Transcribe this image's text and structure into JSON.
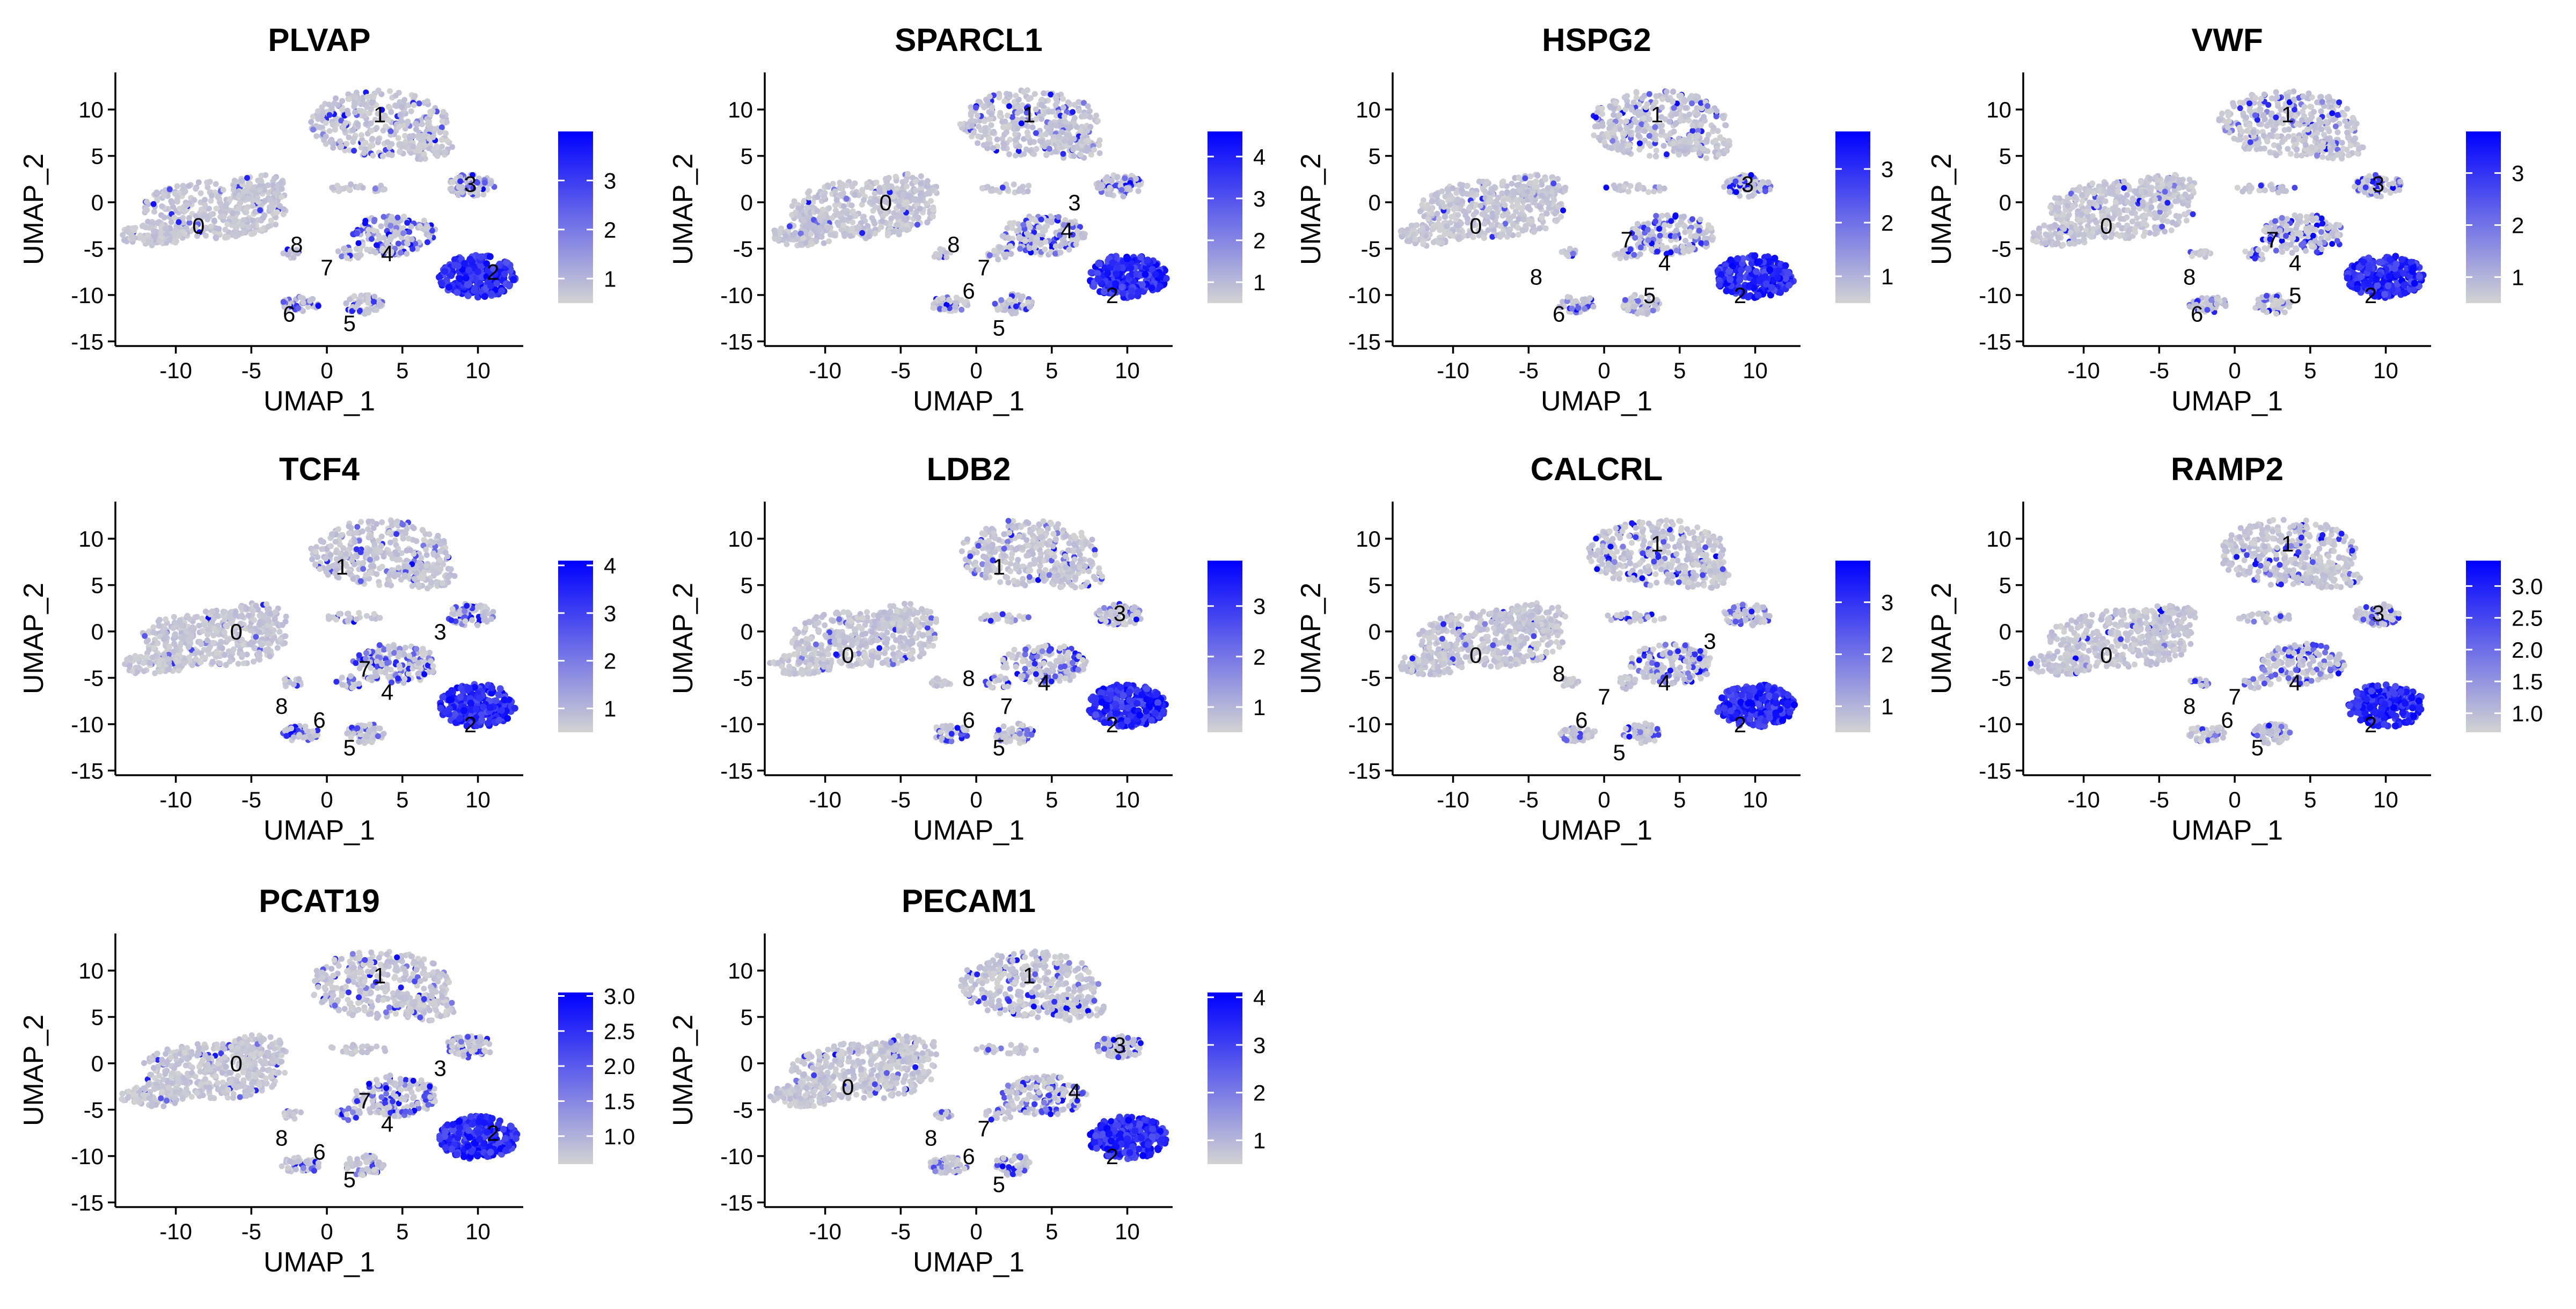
{
  "figure": {
    "layout": "feature-plot-grid",
    "point_color_low": "#d3d3d3",
    "point_color_high": "#0000ff",
    "point_color_mid": "#8e7ee6"
  },
  "chart_data": [
    {
      "type": "scatter",
      "title": "PLVAP",
      "xlabel": "UMAP_1",
      "ylabel": "UMAP_2",
      "xlim": [
        -14,
        13
      ],
      "ylim": [
        -15.5,
        14
      ],
      "x_ticks": [
        -10,
        -5,
        0,
        5,
        10
      ],
      "y_ticks": [
        -15,
        -10,
        -5,
        0,
        5,
        10
      ],
      "x_tick_labels": [
        "-10",
        "-5",
        "0",
        "5",
        "10"
      ],
      "y_tick_labels": [
        "-15",
        "-10",
        "-5",
        "0",
        "5",
        "10"
      ],
      "colorbar": {
        "min": 0.5,
        "max": 4.0,
        "ticks": [
          1,
          2,
          3
        ],
        "tick_labels": [
          "1",
          "2",
          "3"
        ]
      },
      "clusters": [
        {
          "label": "0",
          "x": -8.5,
          "y": -2.5
        },
        {
          "label": "1",
          "x": 3.5,
          "y": 9.5
        },
        {
          "label": "2",
          "x": 11,
          "y": -7.5
        },
        {
          "label": "3",
          "x": 9.5,
          "y": 2
        },
        {
          "label": "4",
          "x": 4,
          "y": -5.5
        },
        {
          "label": "5",
          "x": 1.5,
          "y": -13
        },
        {
          "label": "6",
          "x": -2.5,
          "y": -12
        },
        {
          "label": "7",
          "x": 0,
          "y": -7
        },
        {
          "label": "8",
          "x": -2,
          "y": -4.5
        }
      ]
    },
    {
      "type": "scatter",
      "title": "SPARCL1",
      "xlabel": "UMAP_1",
      "ylabel": "UMAP_2",
      "xlim": [
        -14,
        13
      ],
      "ylim": [
        -15.5,
        14
      ],
      "x_ticks": [
        -10,
        -5,
        0,
        5,
        10
      ],
      "y_ticks": [
        -15,
        -10,
        -5,
        0,
        5,
        10
      ],
      "x_tick_labels": [
        "-10",
        "-5",
        "0",
        "5",
        "10"
      ],
      "y_tick_labels": [
        "-15",
        "-10",
        "-5",
        "0",
        "5",
        "10"
      ],
      "colorbar": {
        "min": 0.5,
        "max": 4.6,
        "ticks": [
          1,
          2,
          3,
          4
        ],
        "tick_labels": [
          "1",
          "2",
          "3",
          "4"
        ]
      },
      "clusters": [
        {
          "label": "0",
          "x": -6,
          "y": 0
        },
        {
          "label": "1",
          "x": 3.5,
          "y": 9.5
        },
        {
          "label": "2",
          "x": 9,
          "y": -10
        },
        {
          "label": "3",
          "x": 6.5,
          "y": 0
        },
        {
          "label": "4",
          "x": 6,
          "y": -3
        },
        {
          "label": "5",
          "x": 1.5,
          "y": -13.5
        },
        {
          "label": "6",
          "x": -0.5,
          "y": -9.5
        },
        {
          "label": "7",
          "x": 0.5,
          "y": -7
        },
        {
          "label": "8",
          "x": -1.5,
          "y": -4.5
        }
      ]
    },
    {
      "type": "scatter",
      "title": "HSPG2",
      "xlabel": "UMAP_1",
      "ylabel": "UMAP_2",
      "xlim": [
        -14,
        13
      ],
      "ylim": [
        -15.5,
        14
      ],
      "x_ticks": [
        -10,
        -5,
        0,
        5,
        10
      ],
      "y_ticks": [
        -15,
        -10,
        -5,
        0,
        5,
        10
      ],
      "x_tick_labels": [
        "-10",
        "-5",
        "0",
        "5",
        "10"
      ],
      "y_tick_labels": [
        "-15",
        "-10",
        "-5",
        "0",
        "5",
        "10"
      ],
      "colorbar": {
        "min": 0.5,
        "max": 3.7,
        "ticks": [
          1,
          2,
          3
        ],
        "tick_labels": [
          "1",
          "2",
          "3"
        ]
      },
      "clusters": [
        {
          "label": "0",
          "x": -8.5,
          "y": -2.5
        },
        {
          "label": "1",
          "x": 3.5,
          "y": 9.5
        },
        {
          "label": "2",
          "x": 9,
          "y": -10
        },
        {
          "label": "3",
          "x": 9.5,
          "y": 2
        },
        {
          "label": "4",
          "x": 4,
          "y": -6.5
        },
        {
          "label": "5",
          "x": 3,
          "y": -10
        },
        {
          "label": "6",
          "x": -3,
          "y": -12
        },
        {
          "label": "7",
          "x": 1.5,
          "y": -4
        },
        {
          "label": "8",
          "x": -4.5,
          "y": -8
        }
      ]
    },
    {
      "type": "scatter",
      "title": "VWF",
      "xlabel": "UMAP_1",
      "ylabel": "UMAP_2",
      "xlim": [
        -14,
        13
      ],
      "ylim": [
        -15.5,
        14
      ],
      "x_ticks": [
        -10,
        -5,
        0,
        5,
        10
      ],
      "y_ticks": [
        -15,
        -10,
        -5,
        0,
        5,
        10
      ],
      "x_tick_labels": [
        "-10",
        "-5",
        "0",
        "5",
        "10"
      ],
      "y_tick_labels": [
        "-15",
        "-10",
        "-5",
        "0",
        "5",
        "10"
      ],
      "colorbar": {
        "min": 0.5,
        "max": 3.8,
        "ticks": [
          1,
          2,
          3
        ],
        "tick_labels": [
          "1",
          "2",
          "3"
        ]
      },
      "clusters": [
        {
          "label": "0",
          "x": -8.5,
          "y": -2.5
        },
        {
          "label": "1",
          "x": 3.5,
          "y": 9.5
        },
        {
          "label": "2",
          "x": 9,
          "y": -10
        },
        {
          "label": "3",
          "x": 9.5,
          "y": 2
        },
        {
          "label": "4",
          "x": 4,
          "y": -6.5
        },
        {
          "label": "5",
          "x": 4,
          "y": -10
        },
        {
          "label": "6",
          "x": -2.5,
          "y": -12
        },
        {
          "label": "7",
          "x": 2.5,
          "y": -4
        },
        {
          "label": "8",
          "x": -3,
          "y": -8
        }
      ]
    },
    {
      "type": "scatter",
      "title": "TCF4",
      "xlabel": "UMAP_1",
      "ylabel": "UMAP_2",
      "xlim": [
        -14,
        13
      ],
      "ylim": [
        -15.5,
        14
      ],
      "x_ticks": [
        -10,
        -5,
        0,
        5,
        10
      ],
      "y_ticks": [
        -15,
        -10,
        -5,
        0,
        5,
        10
      ],
      "x_tick_labels": [
        "-10",
        "-5",
        "0",
        "5",
        "10"
      ],
      "y_tick_labels": [
        "-15",
        "-10",
        "-5",
        "0",
        "5",
        "10"
      ],
      "colorbar": {
        "min": 0.5,
        "max": 4.1,
        "ticks": [
          1,
          2,
          3,
          4
        ],
        "tick_labels": [
          "1",
          "2",
          "3",
          "4"
        ]
      },
      "clusters": [
        {
          "label": "0",
          "x": -6,
          "y": 0
        },
        {
          "label": "1",
          "x": 1,
          "y": 7
        },
        {
          "label": "2",
          "x": 9.5,
          "y": -10
        },
        {
          "label": "3",
          "x": 7.5,
          "y": 0
        },
        {
          "label": "4",
          "x": 4,
          "y": -6.5
        },
        {
          "label": "5",
          "x": 1.5,
          "y": -12.5
        },
        {
          "label": "6",
          "x": -0.5,
          "y": -9.5
        },
        {
          "label": "7",
          "x": 2.5,
          "y": -4
        },
        {
          "label": "8",
          "x": -3,
          "y": -8
        }
      ]
    },
    {
      "type": "scatter",
      "title": "LDB2",
      "xlabel": "UMAP_1",
      "ylabel": "UMAP_2",
      "xlim": [
        -14,
        13
      ],
      "ylim": [
        -15.5,
        14
      ],
      "x_ticks": [
        -10,
        -5,
        0,
        5,
        10
      ],
      "y_ticks": [
        -15,
        -10,
        -5,
        0,
        5,
        10
      ],
      "x_tick_labels": [
        "-10",
        "-5",
        "0",
        "5",
        "10"
      ],
      "y_tick_labels": [
        "-15",
        "-10",
        "-5",
        "0",
        "5",
        "10"
      ],
      "colorbar": {
        "min": 0.5,
        "max": 3.9,
        "ticks": [
          1,
          2,
          3
        ],
        "tick_labels": [
          "1",
          "2",
          "3"
        ]
      },
      "clusters": [
        {
          "label": "0",
          "x": -8.5,
          "y": -2.5
        },
        {
          "label": "1",
          "x": 1.5,
          "y": 7
        },
        {
          "label": "2",
          "x": 9,
          "y": -10
        },
        {
          "label": "3",
          "x": 9.5,
          "y": 2
        },
        {
          "label": "4",
          "x": 4.5,
          "y": -5.5
        },
        {
          "label": "5",
          "x": 1.5,
          "y": -12.5
        },
        {
          "label": "6",
          "x": -0.5,
          "y": -9.5
        },
        {
          "label": "7",
          "x": 2,
          "y": -8
        },
        {
          "label": "8",
          "x": -0.5,
          "y": -5
        }
      ]
    },
    {
      "type": "scatter",
      "title": "CALCRL",
      "xlabel": "UMAP_1",
      "ylabel": "UMAP_2",
      "xlim": [
        -14,
        13
      ],
      "ylim": [
        -15.5,
        14
      ],
      "x_ticks": [
        -10,
        -5,
        0,
        5,
        10
      ],
      "y_ticks": [
        -15,
        -10,
        -5,
        0,
        5,
        10
      ],
      "x_tick_labels": [
        "-10",
        "-5",
        "0",
        "5",
        "10"
      ],
      "y_tick_labels": [
        "-15",
        "-10",
        "-5",
        "0",
        "5",
        "10"
      ],
      "colorbar": {
        "min": 0.5,
        "max": 3.8,
        "ticks": [
          1,
          2,
          3
        ],
        "tick_labels": [
          "1",
          "2",
          "3"
        ]
      },
      "clusters": [
        {
          "label": "0",
          "x": -8.5,
          "y": -2.5
        },
        {
          "label": "1",
          "x": 3.5,
          "y": 9.5
        },
        {
          "label": "2",
          "x": 9,
          "y": -10
        },
        {
          "label": "3",
          "x": 7,
          "y": -1
        },
        {
          "label": "4",
          "x": 4,
          "y": -5.5
        },
        {
          "label": "5",
          "x": 1,
          "y": -13
        },
        {
          "label": "6",
          "x": -1.5,
          "y": -9.5
        },
        {
          "label": "7",
          "x": 0,
          "y": -7
        },
        {
          "label": "8",
          "x": -3,
          "y": -4.5
        }
      ]
    },
    {
      "type": "scatter",
      "title": "RAMP2",
      "xlabel": "UMAP_1",
      "ylabel": "UMAP_2",
      "xlim": [
        -14,
        13
      ],
      "ylim": [
        -15.5,
        14
      ],
      "x_ticks": [
        -10,
        -5,
        0,
        5,
        10
      ],
      "y_ticks": [
        -15,
        -10,
        -5,
        0,
        5,
        10
      ],
      "x_tick_labels": [
        "-10",
        "-5",
        "0",
        "5",
        "10"
      ],
      "y_tick_labels": [
        "-15",
        "-10",
        "-5",
        "0",
        "5",
        "10"
      ],
      "colorbar": {
        "min": 0.7,
        "max": 3.4,
        "ticks": [
          1.0,
          1.5,
          2.0,
          2.5,
          3.0
        ],
        "tick_labels": [
          "1.0",
          "1.5",
          "2.0",
          "2.5",
          "3.0"
        ]
      },
      "clusters": [
        {
          "label": "0",
          "x": -8.5,
          "y": -2.5
        },
        {
          "label": "1",
          "x": 3.5,
          "y": 9.5
        },
        {
          "label": "2",
          "x": 9,
          "y": -10
        },
        {
          "label": "3",
          "x": 9.5,
          "y": 2
        },
        {
          "label": "4",
          "x": 4,
          "y": -5.5
        },
        {
          "label": "5",
          "x": 1.5,
          "y": -12.5
        },
        {
          "label": "6",
          "x": -0.5,
          "y": -9.5
        },
        {
          "label": "7",
          "x": 0,
          "y": -7
        },
        {
          "label": "8",
          "x": -3,
          "y": -8
        }
      ]
    },
    {
      "type": "scatter",
      "title": "PCAT19",
      "xlabel": "UMAP_1",
      "ylabel": "UMAP_2",
      "xlim": [
        -14,
        13
      ],
      "ylim": [
        -15.5,
        14
      ],
      "x_ticks": [
        -10,
        -5,
        0,
        5,
        10
      ],
      "y_ticks": [
        -15,
        -10,
        -5,
        0,
        5,
        10
      ],
      "x_tick_labels": [
        "-10",
        "-5",
        "0",
        "5",
        "10"
      ],
      "y_tick_labels": [
        "-15",
        "-10",
        "-5",
        "0",
        "5",
        "10"
      ],
      "colorbar": {
        "min": 0.6,
        "max": 3.05,
        "ticks": [
          1.0,
          1.5,
          2.0,
          2.5,
          3.0
        ],
        "tick_labels": [
          "1.0",
          "1.5",
          "2.0",
          "2.5",
          "3.0"
        ]
      },
      "clusters": [
        {
          "label": "0",
          "x": -6,
          "y": 0
        },
        {
          "label": "1",
          "x": 3.5,
          "y": 9.5
        },
        {
          "label": "2",
          "x": 11,
          "y": -7.5
        },
        {
          "label": "3",
          "x": 7.5,
          "y": -0.5
        },
        {
          "label": "4",
          "x": 4,
          "y": -6.5
        },
        {
          "label": "5",
          "x": 1.5,
          "y": -12.5
        },
        {
          "label": "6",
          "x": -0.5,
          "y": -9.5
        },
        {
          "label": "7",
          "x": 2.5,
          "y": -4
        },
        {
          "label": "8",
          "x": -3,
          "y": -8
        }
      ]
    },
    {
      "type": "scatter",
      "title": "PECAM1",
      "xlabel": "UMAP_1",
      "ylabel": "UMAP_2",
      "xlim": [
        -14,
        13
      ],
      "ylim": [
        -15.5,
        14
      ],
      "x_ticks": [
        -10,
        -5,
        0,
        5,
        10
      ],
      "y_ticks": [
        -15,
        -10,
        -5,
        0,
        5,
        10
      ],
      "x_tick_labels": [
        "-10",
        "-5",
        "0",
        "5",
        "10"
      ],
      "y_tick_labels": [
        "-15",
        "-10",
        "-5",
        "0",
        "5",
        "10"
      ],
      "colorbar": {
        "min": 0.5,
        "max": 4.1,
        "ticks": [
          1,
          2,
          3,
          4
        ],
        "tick_labels": [
          "1",
          "2",
          "3",
          "4"
        ]
      },
      "clusters": [
        {
          "label": "0",
          "x": -8.5,
          "y": -2.5
        },
        {
          "label": "1",
          "x": 3.5,
          "y": 9.5
        },
        {
          "label": "2",
          "x": 9,
          "y": -10
        },
        {
          "label": "3",
          "x": 9.5,
          "y": 2
        },
        {
          "label": "4",
          "x": 6.5,
          "y": -3
        },
        {
          "label": "5",
          "x": 1.5,
          "y": -13
        },
        {
          "label": "6",
          "x": -0.5,
          "y": -10
        },
        {
          "label": "7",
          "x": 0.5,
          "y": -7
        },
        {
          "label": "8",
          "x": -3,
          "y": -8
        }
      ]
    }
  ]
}
